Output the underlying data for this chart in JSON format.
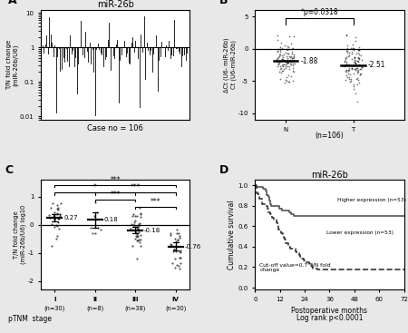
{
  "panel_A": {
    "title": "miR-26b",
    "xlabel": "Case no = 106",
    "ylabel": "T/N fold change\n(miR-26b/U6)",
    "n_cases": 106,
    "seed": 42
  },
  "panel_B": {
    "ylabel": "ΔCt (U6- miR-26b)\nCt (U6-miR-26b)",
    "groups": [
      "N",
      "T"
    ],
    "means": [
      -1.88,
      -2.51
    ],
    "mean_labels": [
      "-1.88",
      "-2.51"
    ],
    "n": 106,
    "pvalue": "*p=0.0318",
    "ylim": [
      -11,
      6
    ],
    "yticks": [
      -10,
      -5,
      0,
      5
    ]
  },
  "panel_C": {
    "ylabel": "T/N fold change\n(miR-26b/U6) log10",
    "xlabel_main": "pTNM  stage",
    "stages": [
      "I",
      "II",
      "III",
      "IV"
    ],
    "ns": [
      30,
      8,
      38,
      30
    ],
    "means": [
      0.27,
      0.18,
      -0.18,
      -0.76
    ],
    "mean_labels": [
      "0.27",
      "0.18",
      "-0.18",
      "-0.76"
    ],
    "sds": [
      0.32,
      0.3,
      0.38,
      0.42
    ],
    "ylim": [
      -2.3,
      1.6
    ],
    "yticks": [
      -2,
      -1,
      0,
      1
    ],
    "sig_brackets": [
      {
        "i": 0,
        "j": 2,
        "label": "*",
        "height": 1.15
      },
      {
        "i": 0,
        "j": 3,
        "label": "***",
        "height": 1.42
      },
      {
        "i": 1,
        "j": 2,
        "label": "***",
        "height": 0.9
      },
      {
        "i": 1,
        "j": 3,
        "label": "***",
        "height": 1.15
      },
      {
        "i": 2,
        "j": 3,
        "label": "***",
        "height": 0.65
      }
    ]
  },
  "panel_D": {
    "title": "miR-26b",
    "ylabel": "Cumulative survival",
    "xlabel": "Postoperative months",
    "legend_high": "Higher expression (n=53)",
    "legend_low": "Lower expression (n=53)",
    "cutoff_text": "Cut-off value=0.7 T/N fold\nchange",
    "logrank_text": "Log rank p<0.0001",
    "xlim": [
      0,
      72
    ],
    "ylim": [
      -0.02,
      1.05
    ],
    "xticks": [
      0,
      12,
      24,
      36,
      48,
      60,
      72
    ],
    "yticks": [
      0.0,
      0.2,
      0.4,
      0.6,
      0.8,
      1.0
    ]
  },
  "bg_color": "#e8e8e8",
  "panel_bg": "#ffffff"
}
